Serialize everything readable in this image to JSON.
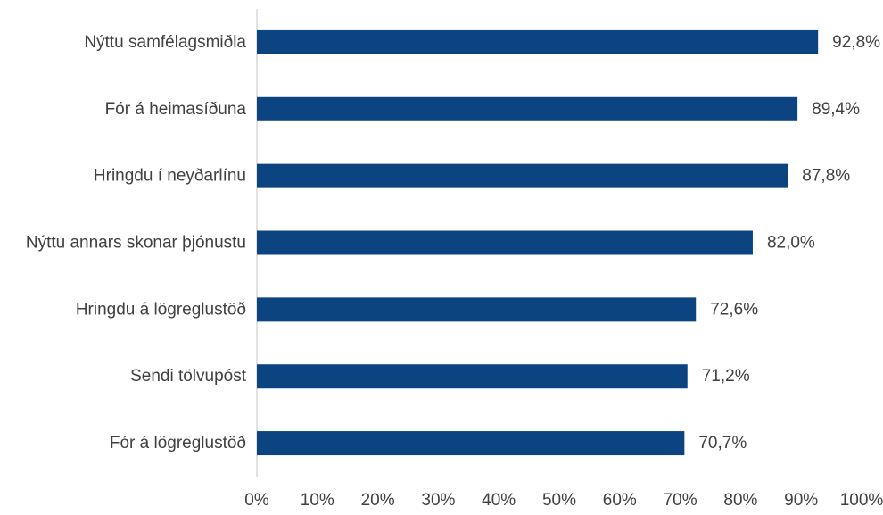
{
  "chart_data": {
    "type": "bar",
    "orientation": "horizontal",
    "categories": [
      "Nýttu samfélagsmiðla",
      "Fór á heimasíðuna",
      "Hringdu í neyðarlínu",
      "Nýttu annars skonar þjónustu",
      "Hringdu á lögreglustöð",
      "Sendi tölvupóst",
      "Fór á lögreglustöð"
    ],
    "values": [
      92.8,
      89.4,
      87.8,
      82.0,
      72.6,
      71.2,
      70.7
    ],
    "value_labels": [
      "92,8%",
      "89,4%",
      "87,8%",
      "82,0%",
      "72,6%",
      "71,2%",
      "70,7%"
    ],
    "xlim": [
      0,
      100
    ],
    "ticks": [
      0,
      10,
      20,
      30,
      40,
      50,
      60,
      70,
      80,
      90,
      100
    ],
    "tick_labels": [
      "0%",
      "10%",
      "20%",
      "30%",
      "40%",
      "50%",
      "60%",
      "70%",
      "80%",
      "90%",
      "100%"
    ],
    "title": "",
    "xlabel": "",
    "ylabel": "",
    "grid": false,
    "legend": "none",
    "bar_color": "#0b4480"
  }
}
